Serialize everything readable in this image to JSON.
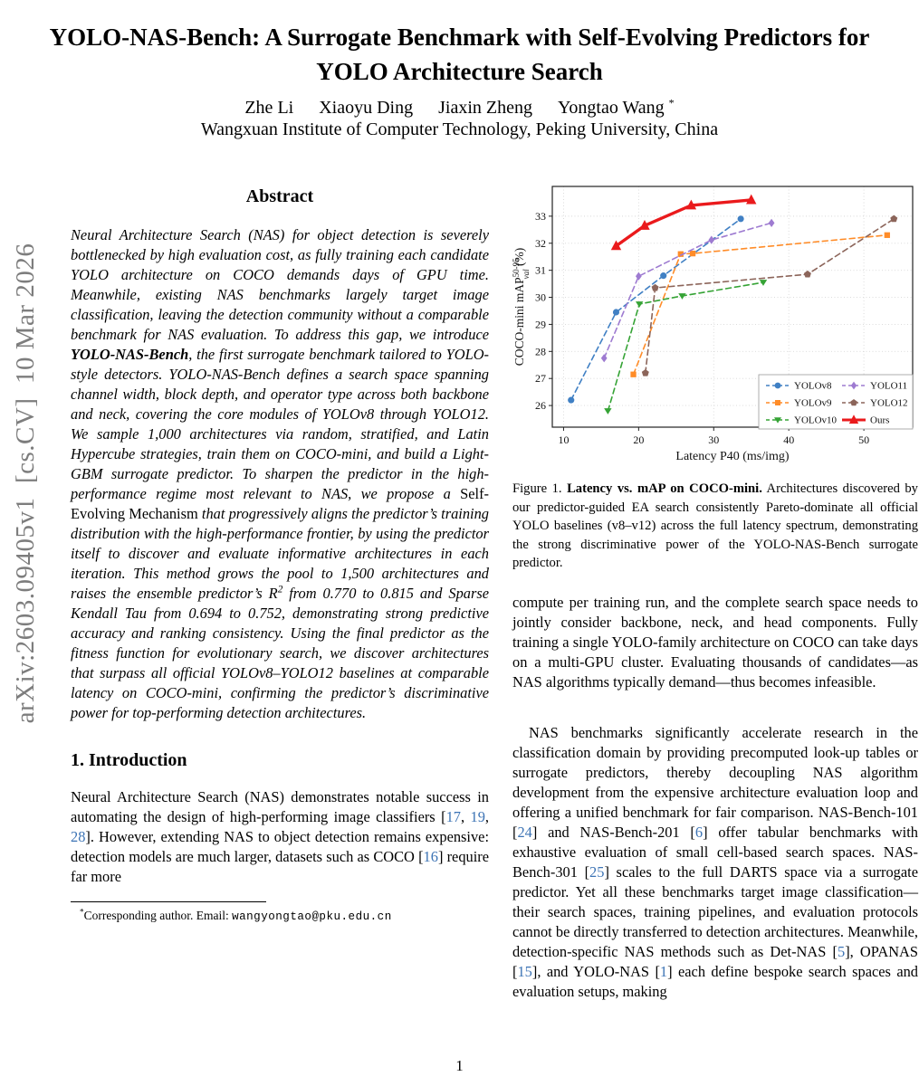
{
  "arxiv_sidebar": "arXiv:2603.09405v1  [cs.CV]  10 Mar 2026",
  "header": {
    "title_line1": "YOLO-NAS-Bench: A Surrogate Benchmark with Self-Evolving Predictors for",
    "title_line2": "YOLO Architecture Search",
    "authors": [
      "Zhe Li",
      "Xiaoyu Ding",
      "Jiaxin Zheng",
      "Yongtao Wang"
    ],
    "author_note_symbol": "*",
    "affiliation": "Wangxuan Institute of Computer Technology, Peking University, China"
  },
  "abstract": {
    "heading": "Abstract",
    "body": [
      {
        "t": "Neural Architecture Search (NAS) for object detection is severely bottlenecked by high evaluation cost, as fully training each candidate YOLO architecture on COCO demands days of GPU time. Meanwhile, existing NAS benchmarks largely target image classification, leaving the detection community without a comparable benchmark for NAS evaluation. To address this gap, we introduce "
      },
      {
        "t": "YOLO-NAS-Bench",
        "s": "b"
      },
      {
        "t": ", the first surrogate benchmark tailored to YOLO-style detectors. YOLO-NAS-Bench defines a search space spanning channel width, block depth, and operator type across both backbone and neck, covering the core modules of YOLOv8 through YOLO12. We sample 1,000 architectures via random, stratified, and Latin Hypercube strategies, train them on COCO-mini, and build a Light-GBM surrogate predictor. To sharpen the predictor in the high-performance regime most relevant to NAS, we propose a "
      },
      {
        "t": "Self-Evolving Mechanism",
        "s": "up"
      },
      {
        "t": " that progressively aligns the predictor’s training distribution with the high-performance frontier, by using the predictor itself to discover and evaluate informative architectures in each iteration. This method grows the pool to 1,500 architectures and raises the ensemble predictor’s R"
      },
      {
        "t": "2",
        "s": "sup"
      },
      {
        "t": " from 0.770 to 0.815 and Sparse Kendall Tau from 0.694 to 0.752, demonstrating strong predictive accuracy and ranking consistency. Using the final predictor as the fitness function for evolutionary search, we discover architectures that surpass all official YOLOv8–YOLO12 baselines at comparable latency on COCO-mini, confirming the predictor’s discriminative power for top-performing detection architectures."
      }
    ]
  },
  "introduction": {
    "heading": "1. Introduction",
    "body": [
      {
        "t": "Neural Architecture Search (NAS) demonstrates notable success in automating the design of high-performing image classifiers ["
      },
      {
        "t": "17",
        "s": "cite"
      },
      {
        "t": ", "
      },
      {
        "t": "19",
        "s": "cite"
      },
      {
        "t": ", "
      },
      {
        "t": "28",
        "s": "cite"
      },
      {
        "t": "]. However, extending NAS to object detection remains expensive: detection models are much larger, datasets such as COCO ["
      },
      {
        "t": "16",
        "s": "cite"
      },
      {
        "t": "] require far more"
      }
    ]
  },
  "footnote": {
    "body": [
      {
        "t": "*",
        "s": "sup"
      },
      {
        "t": "Corresponding author. Email: "
      },
      {
        "t": "wangyongtao@pku.edu.cn",
        "s": "mono"
      }
    ]
  },
  "figure": {
    "caption": [
      {
        "t": "Figure 1. "
      },
      {
        "t": "Latency vs. mAP on COCO-mini.",
        "s": "b"
      },
      {
        "t": " Architectures discovered by our predictor-guided EA search consistently Pareto-dominate all official YOLO baselines (v8–v12) across the full latency spectrum, demonstrating the strong discriminative power of the YOLO-NAS-Bench surrogate predictor."
      }
    ]
  },
  "right_column": {
    "para1": "compute per training run, and the complete search space needs to jointly consider backbone, neck, and head components. Fully training a single YOLO-family architecture on COCO can take days on a multi-GPU cluster. Evaluating thousands of candidates—as NAS algorithms typically demand—thus becomes infeasible.",
    "para2": [
      {
        "t": "NAS benchmarks significantly accelerate research in the classification domain by providing precomputed look-up tables or surrogate predictors, thereby decoupling NAS algorithm development from the expensive architecture evaluation loop and offering a unified benchmark for fair comparison. NAS-Bench-101 ["
      },
      {
        "t": "24",
        "s": "cite"
      },
      {
        "t": "] and NAS-Bench-201 ["
      },
      {
        "t": "6",
        "s": "cite"
      },
      {
        "t": "] offer tabular benchmarks with exhaustive evaluation of small cell-based search spaces. NAS-Bench-301 ["
      },
      {
        "t": "25",
        "s": "cite"
      },
      {
        "t": "] scales to the full DARTS space via a surrogate predictor. Yet all these benchmarks target image classification—their search spaces, training pipelines, and evaluation protocols cannot be directly transferred to detection architectures. Meanwhile, detection-specific NAS methods such as Det-NAS ["
      },
      {
        "t": "5",
        "s": "cite"
      },
      {
        "t": "], OPANAS ["
      },
      {
        "t": "15",
        "s": "cite"
      },
      {
        "t": "], and YOLO-NAS ["
      },
      {
        "t": "1",
        "s": "cite"
      },
      {
        "t": "] each define bespoke search spaces and evaluation setups, making"
      }
    ]
  },
  "page_number": "1",
  "chart_data": {
    "type": "line",
    "title": "",
    "xlabel": "Latency P40 (ms/img)",
    "ylabel_parts": {
      "pre": "COCO-mini mAP",
      "sup": "50-95",
      "sub": "val",
      "post": " (%)"
    },
    "xlim": [
      8.5,
      56.5
    ],
    "ylim": [
      25.2,
      34.1
    ],
    "xticks": [
      10,
      20,
      30,
      40,
      50
    ],
    "yticks": [
      26,
      27,
      28,
      29,
      30,
      31,
      32,
      33
    ],
    "grid": true,
    "legend_position": "lower right",
    "series": [
      {
        "name": "YOLOv8",
        "color": "#4080c4",
        "dash": true,
        "marker": "circle",
        "line_width": 1.6,
        "points": [
          [
            11.0,
            26.2
          ],
          [
            17.0,
            29.45
          ],
          [
            23.3,
            30.8
          ],
          [
            33.6,
            32.9
          ]
        ]
      },
      {
        "name": "YOLOv9",
        "color": "#ff8c28",
        "dash": true,
        "marker": "square",
        "line_width": 1.6,
        "points": [
          [
            19.3,
            27.15
          ],
          [
            25.6,
            31.6
          ],
          [
            27.2,
            31.62
          ],
          [
            53.1,
            32.3
          ]
        ]
      },
      {
        "name": "YOLOv10",
        "color": "#35a335",
        "dash": true,
        "marker": "triangle-down",
        "line_width": 1.6,
        "points": [
          [
            15.9,
            25.8
          ],
          [
            20.1,
            29.75
          ],
          [
            25.8,
            30.05
          ],
          [
            36.6,
            30.55
          ]
        ]
      },
      {
        "name": "YOLO11",
        "color": "#9e7bd1",
        "dash": true,
        "marker": "diamond",
        "line_width": 1.6,
        "points": [
          [
            15.4,
            27.75
          ],
          [
            20.0,
            30.78
          ],
          [
            29.7,
            32.12
          ],
          [
            37.7,
            32.75
          ]
        ]
      },
      {
        "name": "YOLO12",
        "color": "#8c655a",
        "dash": true,
        "marker": "pentagon",
        "line_width": 1.6,
        "points": [
          [
            20.9,
            27.2
          ],
          [
            22.2,
            30.35
          ],
          [
            42.5,
            30.85
          ],
          [
            54.0,
            32.9
          ]
        ]
      },
      {
        "name": "Ours",
        "color": "#ea1a1c",
        "dash": false,
        "marker": "triangle-up",
        "line_width": 3.4,
        "points": [
          [
            17.0,
            31.9
          ],
          [
            20.8,
            32.65
          ],
          [
            27.0,
            33.4
          ],
          [
            35.0,
            33.6
          ]
        ]
      }
    ]
  }
}
